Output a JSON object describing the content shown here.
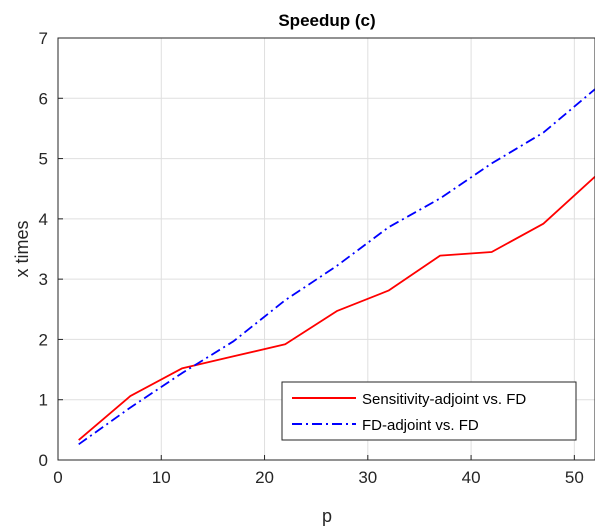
{
  "chart_data": {
    "type": "line",
    "title": "Speedup (c)",
    "xlabel": "p",
    "ylabel": "x times",
    "xlim": [
      0,
      52
    ],
    "ylim": [
      0,
      7
    ],
    "xticks": [
      0,
      10,
      20,
      30,
      40,
      50
    ],
    "yticks": [
      0,
      1,
      2,
      3,
      4,
      5,
      6,
      7
    ],
    "grid": true,
    "legend_position": "bottom-right",
    "series": [
      {
        "name": "Sensitivity-adjoint vs. FD",
        "color": "#ff0000",
        "style": "solid",
        "x": [
          2,
          7,
          12,
          17,
          22,
          27,
          32,
          37,
          42,
          47,
          52
        ],
        "y": [
          0.33,
          1.06,
          1.52,
          1.72,
          1.92,
          2.47,
          2.81,
          3.39,
          3.45,
          3.92,
          4.7
        ]
      },
      {
        "name": "FD-adjoint vs. FD",
        "color": "#0000ff",
        "style": "dashdot",
        "x": [
          2,
          7,
          12,
          17,
          22,
          27,
          32,
          37,
          42,
          47,
          52
        ],
        "y": [
          0.26,
          0.87,
          1.44,
          1.97,
          2.65,
          3.22,
          3.86,
          4.34,
          4.92,
          5.43,
          6.15
        ]
      }
    ]
  }
}
